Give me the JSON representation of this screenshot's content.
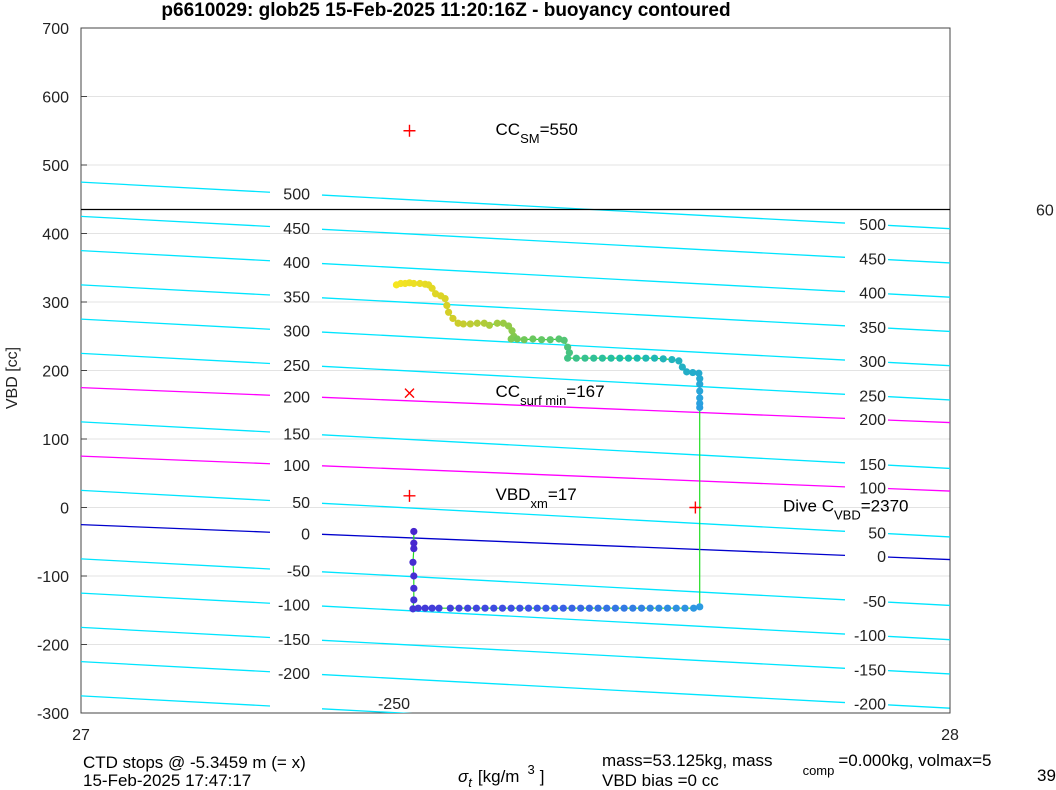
{
  "chart_data": {
    "type": "scatter",
    "title": "p6610029: glob25 15-Feb-2025 11:20:16Z - buoyancy contoured",
    "xlabel_symbol": "σ",
    "xlabel_sub": "t",
    "xlabel_units": "[kg/m",
    "xlabel_sup": "3",
    "xlabel_close": "]",
    "ylabel": "VBD [cc]",
    "xlim": [
      27,
      28
    ],
    "ylim": [
      -300,
      700
    ],
    "x_ticks": [
      "27",
      "28"
    ],
    "y_ticks": [
      "-300",
      "-200",
      "-100",
      "0",
      "100",
      "200",
      "300",
      "400",
      "500",
      "600",
      "700"
    ],
    "grid": "horizontal",
    "contours": [
      {
        "label": "500",
        "value": 500,
        "color": "#00e5ff",
        "left_y": 475,
        "right_y": 407
      },
      {
        "label": "450",
        "value": 450,
        "color": "#00e5ff",
        "left_y": 425,
        "right_y": 357
      },
      {
        "label": "400",
        "value": 400,
        "color": "#00e5ff",
        "left_y": 375,
        "right_y": 307
      },
      {
        "label": "350",
        "value": 350,
        "color": "#00e5ff",
        "left_y": 325,
        "right_y": 257
      },
      {
        "label": "300",
        "value": 300,
        "color": "#00e5ff",
        "left_y": 275,
        "right_y": 207
      },
      {
        "label": "250",
        "value": 250,
        "color": "#00e5ff",
        "left_y": 225,
        "right_y": 157
      },
      {
        "label": "200",
        "value": 200,
        "color": "#ff00ff",
        "left_y": 175,
        "right_y": 124
      },
      {
        "label": "150",
        "value": 150,
        "color": "#00e5ff",
        "left_y": 125,
        "right_y": 57
      },
      {
        "label": "100",
        "value": 100,
        "color": "#ff00ff",
        "left_y": 75,
        "right_y": 24
      },
      {
        "label": "50",
        "value": 50,
        "color": "#00e5ff",
        "left_y": 25,
        "right_y": -43
      },
      {
        "label": "0",
        "value": 0,
        "color": "#0000cc",
        "left_y": -25,
        "right_y": -76
      },
      {
        "label": "-50",
        "value": -50,
        "color": "#00e5ff",
        "left_y": -75,
        "right_y": -143
      },
      {
        "label": "-100",
        "value": -100,
        "color": "#00e5ff",
        "left_y": -125,
        "right_y": -193
      },
      {
        "label": "-150",
        "value": -150,
        "color": "#00e5ff",
        "left_y": -175,
        "right_y": -243
      },
      {
        "label": "-200",
        "value": -200,
        "color": "#00e5ff",
        "left_y": -225,
        "right_y": -293
      },
      {
        "label": "-250",
        "value": -250,
        "color": "#00e5ff",
        "left_y": -275,
        "right_y": -343
      }
    ],
    "max_line": {
      "y": 435,
      "color": "#000000",
      "label": "60"
    },
    "markers": [
      {
        "x": 27.378,
        "y": 550,
        "symbol": "+",
        "color": "#ff0000",
        "label": "CC",
        "label_sub": "SM",
        "label_tail": "=550",
        "label_x": 27.477
      },
      {
        "x": 27.378,
        "y": 167,
        "symbol": "x",
        "color": "#ff0000",
        "label": "CC",
        "label_sub": "surf min",
        "label_tail": "=167",
        "label_x": 27.477
      },
      {
        "x": 27.378,
        "y": 17,
        "symbol": "+",
        "color": "#ff0000",
        "label": "VBD",
        "label_sub": "xm",
        "label_tail": "=17",
        "label_x": 27.477
      },
      {
        "x": 27.707,
        "y": 0,
        "symbol": "+",
        "color": "#ff0000",
        "label": "Dive C",
        "label_sub": "VBD",
        "label_tail": "=2370",
        "label_x": 27.808
      }
    ],
    "trace": {
      "line_color": "#22dd22",
      "points": [
        [
          27.363,
          325
        ],
        [
          27.368,
          327
        ],
        [
          27.373,
          327
        ],
        [
          27.378,
          328
        ],
        [
          27.383,
          327
        ],
        [
          27.39,
          327
        ],
        [
          27.396,
          326
        ],
        [
          27.4,
          325
        ],
        [
          27.404,
          320
        ],
        [
          27.408,
          312
        ],
        [
          27.414,
          309
        ],
        [
          27.419,
          305
        ],
        [
          27.421,
          295
        ],
        [
          27.423,
          285
        ],
        [
          27.428,
          276
        ],
        [
          27.434,
          269
        ],
        [
          27.44,
          268
        ],
        [
          27.448,
          268
        ],
        [
          27.456,
          269
        ],
        [
          27.464,
          269
        ],
        [
          27.47,
          266
        ],
        [
          27.479,
          269
        ],
        [
          27.486,
          269
        ],
        [
          27.492,
          265
        ],
        [
          27.496,
          258
        ],
        [
          27.498,
          250
        ],
        [
          27.495,
          246
        ],
        [
          27.502,
          246
        ],
        [
          27.51,
          245
        ],
        [
          27.52,
          246
        ],
        [
          27.53,
          245
        ],
        [
          27.54,
          245
        ],
        [
          27.55,
          246
        ],
        [
          27.556,
          244
        ],
        [
          27.56,
          234
        ],
        [
          27.562,
          226
        ],
        [
          27.56,
          218
        ],
        [
          27.57,
          218
        ],
        [
          27.58,
          218
        ],
        [
          27.59,
          218
        ],
        [
          27.6,
          218
        ],
        [
          27.61,
          218
        ],
        [
          27.62,
          218
        ],
        [
          27.63,
          218
        ],
        [
          27.64,
          218
        ],
        [
          27.65,
          218
        ],
        [
          27.66,
          218
        ],
        [
          27.67,
          217
        ],
        [
          27.68,
          216
        ],
        [
          27.688,
          214
        ],
        [
          27.692,
          205
        ],
        [
          27.697,
          198
        ],
        [
          27.704,
          197
        ],
        [
          27.711,
          196
        ],
        [
          27.712,
          188
        ],
        [
          27.712,
          180
        ],
        [
          27.712,
          170
        ],
        [
          27.712,
          160
        ],
        [
          27.712,
          152
        ],
        [
          27.712,
          146
        ],
        [
          27.712,
          -145
        ],
        [
          27.705,
          -147
        ],
        [
          27.695,
          -147
        ],
        [
          27.685,
          -147
        ],
        [
          27.675,
          -147
        ],
        [
          27.665,
          -147
        ],
        [
          27.655,
          -147
        ],
        [
          27.645,
          -147
        ],
        [
          27.635,
          -147
        ],
        [
          27.625,
          -147
        ],
        [
          27.615,
          -147
        ],
        [
          27.605,
          -147
        ],
        [
          27.595,
          -147
        ],
        [
          27.585,
          -147
        ],
        [
          27.575,
          -147
        ],
        [
          27.565,
          -147
        ],
        [
          27.555,
          -147
        ],
        [
          27.545,
          -147
        ],
        [
          27.535,
          -147
        ],
        [
          27.525,
          -147
        ],
        [
          27.515,
          -147
        ],
        [
          27.505,
          -147
        ],
        [
          27.495,
          -147
        ],
        [
          27.485,
          -147
        ],
        [
          27.475,
          -147
        ],
        [
          27.465,
          -147
        ],
        [
          27.455,
          -147
        ],
        [
          27.445,
          -147
        ],
        [
          27.435,
          -147
        ],
        [
          27.425,
          -147
        ],
        [
          27.412,
          -147
        ],
        [
          27.404,
          -147
        ],
        [
          27.396,
          -147
        ],
        [
          27.388,
          -147
        ],
        [
          27.382,
          -148
        ],
        [
          27.383,
          -135
        ],
        [
          27.383,
          -118
        ],
        [
          27.383,
          -100
        ],
        [
          27.382,
          -80
        ],
        [
          27.383,
          -60
        ],
        [
          27.383,
          -52
        ],
        [
          27.383,
          -35
        ]
      ]
    },
    "footer": {
      "ctd_line1": "CTD stops @ -5.3459 m (= x)",
      "ctd_line2": "15-Feb-2025 17:47:17",
      "mass_line1_a": "mass=53.125kg, mass",
      "mass_line1_sub": "comp",
      "mass_line1_b": "=0.000kg, volmax=5",
      "mass_line2": "VBD bias =0 cc",
      "mass_line2_right": "39"
    }
  }
}
